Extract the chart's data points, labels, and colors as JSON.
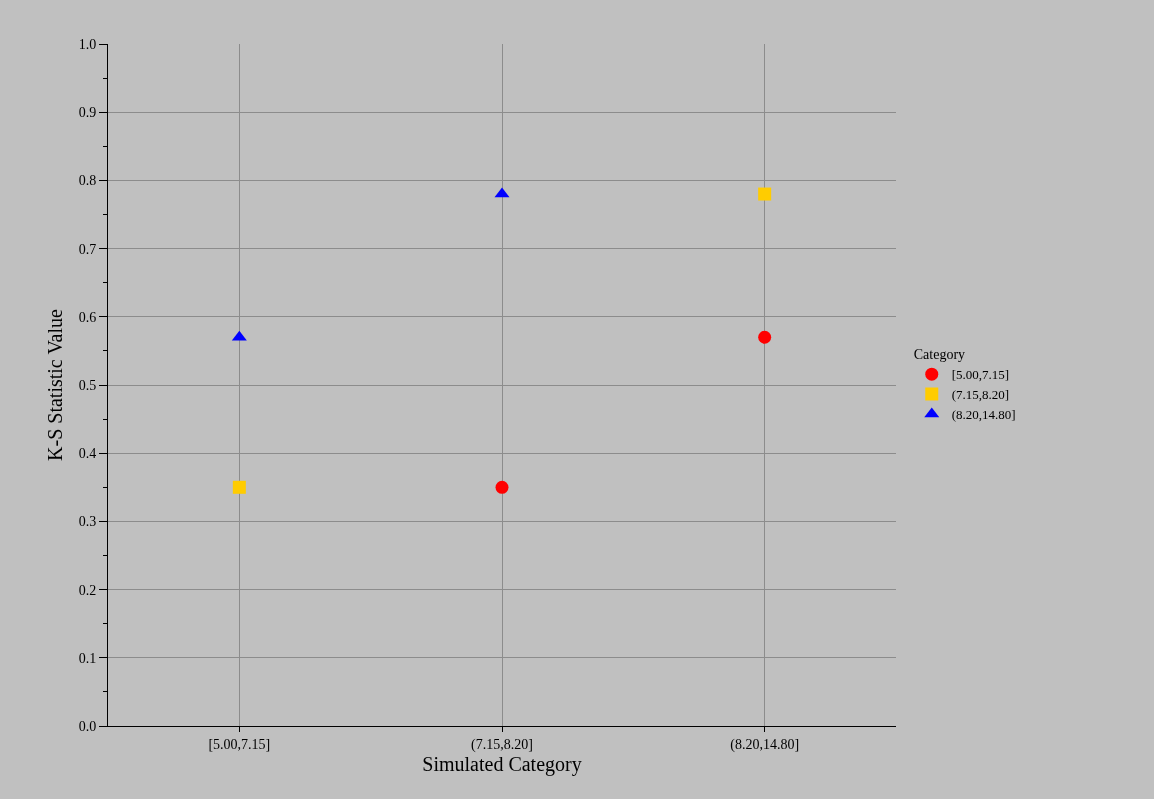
{
  "chart_data": {
    "type": "scatter",
    "xlabel": "Simulated Category",
    "ylabel": "K-S Statistic Value",
    "legend_title": "Category",
    "categories": [
      "[5.00,7.15]",
      "(7.15,8.20]",
      "(8.20,14.80]"
    ],
    "series": [
      {
        "name": "[5.00,7.15]",
        "color": "#ff0000",
        "marker": "circle",
        "values": [
          null,
          0.35,
          0.57
        ]
      },
      {
        "name": "(7.15,8.20]",
        "color": "#ffcc00",
        "marker": "square",
        "values": [
          0.35,
          null,
          0.78
        ]
      },
      {
        "name": "(8.20,14.80]",
        "color": "#0000ff",
        "marker": "triangle",
        "values": [
          0.57,
          0.78,
          null
        ]
      }
    ],
    "ylim": [
      0,
      1
    ],
    "yticks": [
      {
        "value": 0,
        "label": "0.0"
      },
      {
        "value": 0.05,
        "label": null
      },
      {
        "value": 0.1,
        "label": "0.1"
      },
      {
        "value": 0.15,
        "label": null
      },
      {
        "value": 0.2,
        "label": "0.2"
      },
      {
        "value": 0.25,
        "label": null
      },
      {
        "value": 0.3,
        "label": "0.3"
      },
      {
        "value": 0.35,
        "label": null
      },
      {
        "value": 0.4,
        "label": "0.4"
      },
      {
        "value": 0.45,
        "label": null
      },
      {
        "value": 0.5,
        "label": "0.5"
      },
      {
        "value": 0.55,
        "label": null
      },
      {
        "value": 0.6,
        "label": "0.6"
      },
      {
        "value": 0.65,
        "label": null
      },
      {
        "value": 0.7,
        "label": "0.7"
      },
      {
        "value": 0.75,
        "label": null
      },
      {
        "value": 0.8,
        "label": "0.8"
      },
      {
        "value": 0.85,
        "label": null
      },
      {
        "value": 0.9,
        "label": "0.9"
      },
      {
        "value": 0.95,
        "label": null
      },
      {
        "value": 1,
        "label": "1.0"
      }
    ],
    "grid": true,
    "legend": "right"
  }
}
